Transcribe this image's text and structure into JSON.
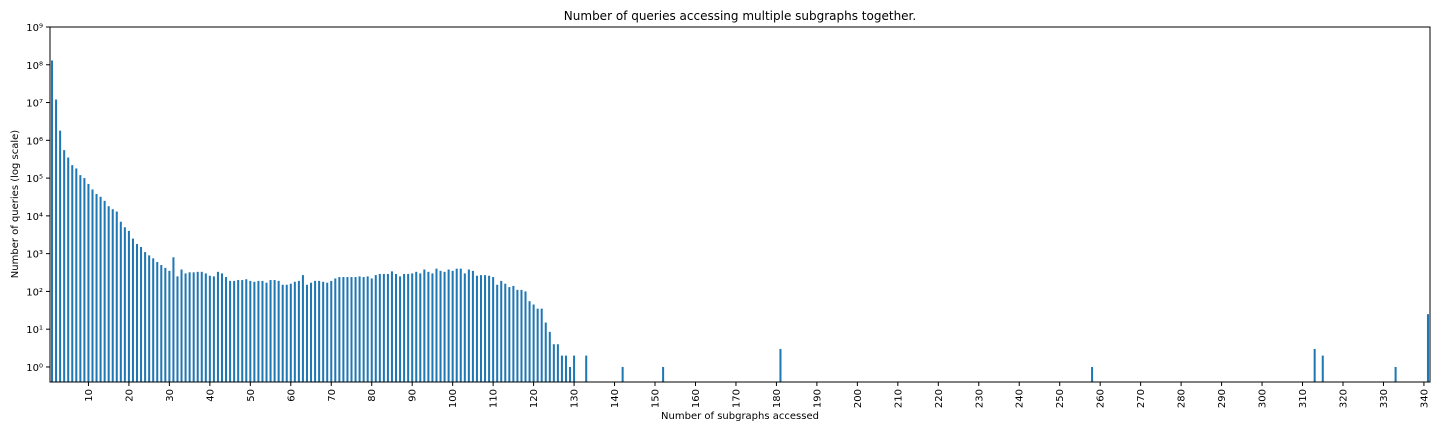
{
  "chart_data": {
    "type": "bar",
    "title": "Number of queries accessing multiple subgraphs together.",
    "xlabel": "Number of subgraphs accessed",
    "ylabel": "Number of queries (log scale)",
    "color": "#1f77b4",
    "log_y": true,
    "x": [
      1,
      2,
      3,
      4,
      5,
      6,
      7,
      8,
      9,
      10,
      11,
      12,
      13,
      14,
      15,
      16,
      17,
      18,
      19,
      20,
      21,
      22,
      23,
      24,
      25,
      26,
      27,
      28,
      29,
      30,
      31,
      32,
      33,
      34,
      35,
      36,
      37,
      38,
      39,
      40,
      41,
      42,
      43,
      44,
      45,
      46,
      47,
      48,
      49,
      50,
      51,
      52,
      53,
      54,
      55,
      56,
      57,
      58,
      59,
      60,
      61,
      62,
      63,
      64,
      65,
      66,
      67,
      68,
      69,
      70,
      71,
      72,
      73,
      74,
      75,
      76,
      77,
      78,
      79,
      80,
      81,
      82,
      83,
      84,
      85,
      86,
      87,
      88,
      89,
      90,
      91,
      92,
      93,
      94,
      95,
      96,
      97,
      98,
      99,
      100,
      101,
      102,
      103,
      104,
      105,
      106,
      107,
      108,
      109,
      110,
      111,
      112,
      113,
      114,
      115,
      116,
      117,
      118,
      119,
      120,
      121,
      122,
      123,
      124,
      125,
      126,
      127,
      128,
      129,
      130,
      133,
      142,
      152,
      181,
      258,
      313,
      315,
      333,
      341
    ],
    "values": [
      130000000,
      12000000,
      1800000,
      550000,
      350000,
      220000,
      180000,
      120000,
      100000,
      70000,
      50000,
      38000,
      32000,
      25000,
      18000,
      15000,
      13000,
      7000,
      5000,
      4000,
      2500,
      1800,
      1500,
      1100,
      900,
      750,
      600,
      500,
      420,
      350,
      800,
      250,
      380,
      300,
      320,
      320,
      330,
      330,
      300,
      260,
      250,
      330,
      300,
      240,
      190,
      190,
      200,
      200,
      210,
      190,
      180,
      190,
      190,
      170,
      200,
      200,
      190,
      150,
      150,
      160,
      180,
      190,
      270,
      150,
      170,
      190,
      190,
      180,
      170,
      190,
      220,
      240,
      240,
      240,
      240,
      240,
      250,
      240,
      250,
      220,
      270,
      290,
      290,
      290,
      340,
      290,
      250,
      290,
      290,
      300,
      330,
      300,
      380,
      330,
      300,
      400,
      350,
      330,
      380,
      350,
      400,
      400,
      300,
      380,
      350,
      260,
      270,
      270,
      260,
      240,
      150,
      190,
      160,
      130,
      140,
      110,
      110,
      100,
      55,
      45,
      35,
      35,
      15,
      8.5,
      4,
      4,
      2,
      2,
      1,
      2,
      2,
      1,
      1,
      3,
      1,
      3,
      2,
      1,
      25
    ],
    "xlim": [
      0.5,
      341.5
    ],
    "xticks": [
      10,
      20,
      30,
      40,
      50,
      60,
      70,
      80,
      90,
      100,
      110,
      120,
      130,
      140,
      150,
      160,
      170,
      180,
      190,
      200,
      210,
      220,
      230,
      240,
      250,
      260,
      270,
      280,
      290,
      300,
      310,
      320,
      330,
      340
    ],
    "ylim": [
      0.4,
      1000000000
    ],
    "yticks": [
      {
        "value": 1,
        "label": "10⁰"
      },
      {
        "value": 10,
        "label": "10¹"
      },
      {
        "value": 100,
        "label": "10²"
      },
      {
        "value": 1000,
        "label": "10³"
      },
      {
        "value": 10000,
        "label": "10⁴"
      },
      {
        "value": 100000,
        "label": "10⁵"
      },
      {
        "value": 1000000,
        "label": "10⁶"
      },
      {
        "value": 10000000,
        "label": "10⁷"
      },
      {
        "value": 100000000,
        "label": "10⁸"
      },
      {
        "value": 1000000000,
        "label": "10⁹"
      }
    ]
  }
}
